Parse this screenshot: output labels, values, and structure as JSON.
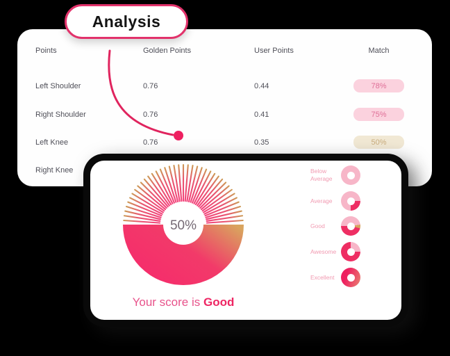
{
  "analysis_label": "Analysis",
  "table": {
    "headers": {
      "points": "Points",
      "golden": "Golden Points",
      "user": "User Points",
      "match": "Match"
    },
    "rows": [
      {
        "point": "Left Shoulder",
        "golden": "0.76",
        "user": "0.44",
        "match": "78%",
        "match_style": "pink"
      },
      {
        "point": "Right Shoulder",
        "golden": "0.76",
        "user": "0.41",
        "match": "75%",
        "match_style": "pink"
      },
      {
        "point": "Left Knee",
        "golden": "0.76",
        "user": "0.35",
        "match": "50%",
        "match_style": "gold"
      },
      {
        "point": "Right Knee",
        "golden": "",
        "user": "",
        "match": "",
        "match_style": "none"
      }
    ]
  },
  "score_card": {
    "chart_data": {
      "type": "gauge",
      "percent": 50,
      "center_label": "50%",
      "caption_prefix": "Your score is",
      "caption_value": "Good",
      "legend": [
        {
          "label": "Below Average",
          "percent": 0
        },
        {
          "label": "Average",
          "percent": 25
        },
        {
          "label": "Good",
          "percent": 50,
          "gold_tip": true
        },
        {
          "label": "Awesome",
          "percent": 75
        },
        {
          "label": "Excellent",
          "percent": 100
        }
      ]
    }
  },
  "colors": {
    "accent_pink": "#ee2563",
    "gauge_gold": "#d5a35c",
    "light_pink": "#f7b6c8",
    "dark_pink": "#ee2e63",
    "badge_pink_bg": "#fbd2de",
    "badge_pink_text": "#df6f97",
    "badge_gold_bg": "#f1e8d4",
    "badge_gold_text": "#c9ad7e"
  }
}
